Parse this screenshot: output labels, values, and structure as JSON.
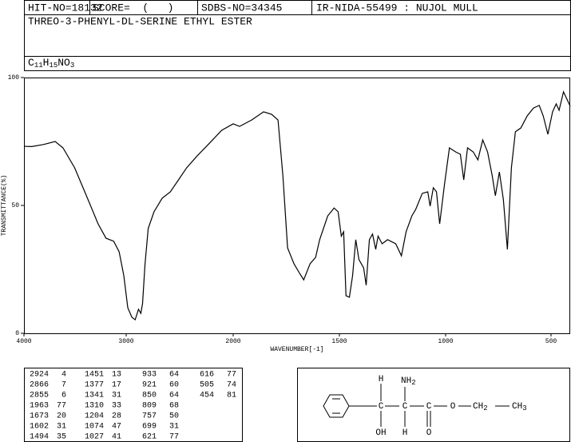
{
  "header": {
    "hit": "HIT-NO=18132",
    "score": "SCORE=  (   )",
    "sdbs": "SDBS-NO=34345",
    "method": "IR-NIDA-55499 : NUJOL MULL"
  },
  "title": "THREO-3-PHENYL-DL-SERINE ETHYL ESTER",
  "formula": "C11H15NO3",
  "chart_data": {
    "type": "line",
    "xlabel": "WAVENUMBER[-1]",
    "ylabel": "TRANSMITTANCE(%)",
    "xlim": [
      4000,
      400
    ],
    "ylim": [
      0,
      100
    ],
    "xticks": [
      4000,
      3000,
      2000,
      1500,
      1000,
      500
    ],
    "yticks": [
      0,
      50,
      100
    ],
    "series": [
      {
        "color": "#000000",
        "x": [
          4000,
          3924,
          3809,
          3695,
          3618,
          3504,
          3389,
          3275,
          3198,
          3122,
          3069,
          3023,
          2985,
          2947,
          2916,
          2885,
          2863,
          2847,
          2824,
          2794,
          2740,
          2664,
          2588,
          2511,
          2435,
          2336,
          2229,
          2107,
          2000,
          1970,
          1913,
          1857,
          1819,
          1789,
          1766,
          1744,
          1714,
          1687,
          1668,
          1638,
          1612,
          1593,
          1555,
          1525,
          1506,
          1491,
          1480,
          1469,
          1453,
          1438,
          1423,
          1408,
          1386,
          1374,
          1359,
          1344,
          1329,
          1318,
          1299,
          1273,
          1235,
          1208,
          1186,
          1159,
          1141,
          1110,
          1084,
          1073,
          1058,
          1043,
          1028,
          1005,
          982,
          952,
          930,
          914,
          896,
          869,
          847,
          824,
          801,
          779,
          764,
          745,
          726,
          707,
          688,
          669,
          643,
          613,
          583,
          556,
          537,
          515,
          492,
          473,
          458,
          435,
          400
        ],
        "values": [
          73.1,
          73,
          73.8,
          75,
          72.5,
          64.7,
          53.8,
          42.8,
          37.2,
          36,
          31.9,
          22.5,
          10,
          6.3,
          5.3,
          9.4,
          7.8,
          11.6,
          27,
          41,
          47.5,
          52.8,
          55.3,
          60,
          64.7,
          69.4,
          74,
          79.4,
          81.9,
          80.9,
          83.4,
          86.6,
          85.6,
          83.4,
          61.6,
          33.4,
          27.2,
          23.4,
          20.9,
          27.2,
          29.7,
          36.6,
          45.9,
          49,
          47.5,
          38,
          39.7,
          14.7,
          14.1,
          22.5,
          36.6,
          28.8,
          25.6,
          18.8,
          36.6,
          38.8,
          32.8,
          38,
          35,
          36.6,
          35,
          30.3,
          39.7,
          45.9,
          48.4,
          54.7,
          55.3,
          49.7,
          56.9,
          55.3,
          42.8,
          58.4,
          72.5,
          70.9,
          70,
          60,
          72.5,
          70.9,
          67.8,
          75.6,
          70.9,
          61.6,
          53.8,
          63.1,
          52.2,
          32.8,
          64.7,
          78.8,
          80.3,
          85,
          88.1,
          89.1,
          85,
          77.8,
          86.6,
          89.7,
          87.2,
          94.4,
          88.8
        ]
      }
    ]
  },
  "peak_table": [
    [
      [
        2924,
        4
      ],
      [
        2866,
        7
      ],
      [
        2855,
        6
      ],
      [
        1963,
        77
      ],
      [
        1673,
        20
      ],
      [
        1602,
        31
      ],
      [
        1494,
        35
      ]
    ],
    [
      [
        1451,
        13
      ],
      [
        1377,
        17
      ],
      [
        1341,
        31
      ],
      [
        1310,
        33
      ],
      [
        1204,
        28
      ],
      [
        1074,
        47
      ],
      [
        1027,
        41
      ]
    ],
    [
      [
        933,
        64
      ],
      [
        921,
        60
      ],
      [
        850,
        64
      ],
      [
        809,
        68
      ],
      [
        757,
        50
      ],
      [
        699,
        31
      ],
      [
        621,
        77
      ]
    ],
    [
      [
        616,
        77
      ],
      [
        505,
        74
      ],
      [
        454,
        81
      ]
    ]
  ],
  "structure": {
    "h_top": "H",
    "nh2": "NH2",
    "oh": "OH",
    "h_bottom": "H",
    "o_carbonyl": "O",
    "o_ester": "O",
    "ch2": "CH2",
    "ch3": "CH3"
  }
}
